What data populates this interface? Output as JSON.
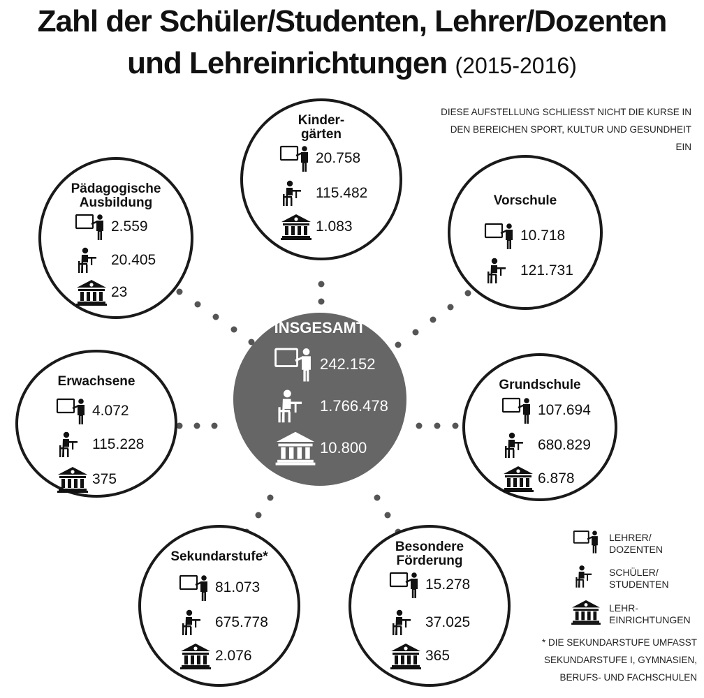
{
  "title": {
    "line1": "Zahl der Schüler/Studenten, Lehrer/Dozenten",
    "line2": "und Lehreinrichtungen",
    "year": "(2015-2016)"
  },
  "note": {
    "line1": "DIESE AUFSTELLUNG SCHLIESST NICHT DIE KURSE IN",
    "line2": "DEN BEREICHEN SPORT, KULTUR UND GESUNDHEIT EIN"
  },
  "center": {
    "title": "INSGESAMT",
    "teachers": "242.152",
    "students": "1.766.478",
    "institutions": "10.800"
  },
  "nodes": {
    "kindergaerten": {
      "title_line1": "Kinder-",
      "title_line2": "gärten",
      "teachers": "20.758",
      "students": "115.482",
      "institutions": "1.083"
    },
    "paedagogische": {
      "title_line1": "Pädagogische",
      "title_line2": "Ausbildung",
      "teachers": "2.559",
      "students": "20.405",
      "institutions": "23"
    },
    "vorschule": {
      "title": "Vorschule",
      "teachers": "10.718",
      "students": "121.731"
    },
    "erwachsene": {
      "title": "Erwachsene",
      "teachers": "4.072",
      "students": "115.228",
      "institutions": "375"
    },
    "grundschule": {
      "title": "Grundschule",
      "teachers": "107.694",
      "students": "680.829",
      "institutions": "6.878"
    },
    "sekundarstufe": {
      "title": "Sekundarstufe*",
      "teachers": "81.073",
      "students": "675.778",
      "institutions": "2.076"
    },
    "foerderung": {
      "title_line1": "Besondere",
      "title_line2": "Förderung",
      "teachers": "15.278",
      "students": "37.025",
      "institutions": "365"
    }
  },
  "legend": {
    "teachers_line1": "LEHRER/",
    "teachers_line2": "DOZENTEN",
    "students_line1": "SCHÜLER/",
    "students_line2": "STUDENTEN",
    "institutions_line1": "LEHR-",
    "institutions_line2": "EINRICHTUNGEN"
  },
  "footnote": {
    "line1": "* DIE SEKUNDARSTUFE UMFASST",
    "line2": "SEKUNDARSTUFE I, GYMNASIEN,",
    "line3": "BERUFS- UND FACHSCHULEN"
  },
  "icons": {
    "teacher": "teacher-at-board-icon",
    "student": "student-at-desk-icon",
    "institution": "institution-building-icon"
  },
  "colors": {
    "center_fill": "#666666",
    "ink": "#111111",
    "dots": "#555555"
  }
}
